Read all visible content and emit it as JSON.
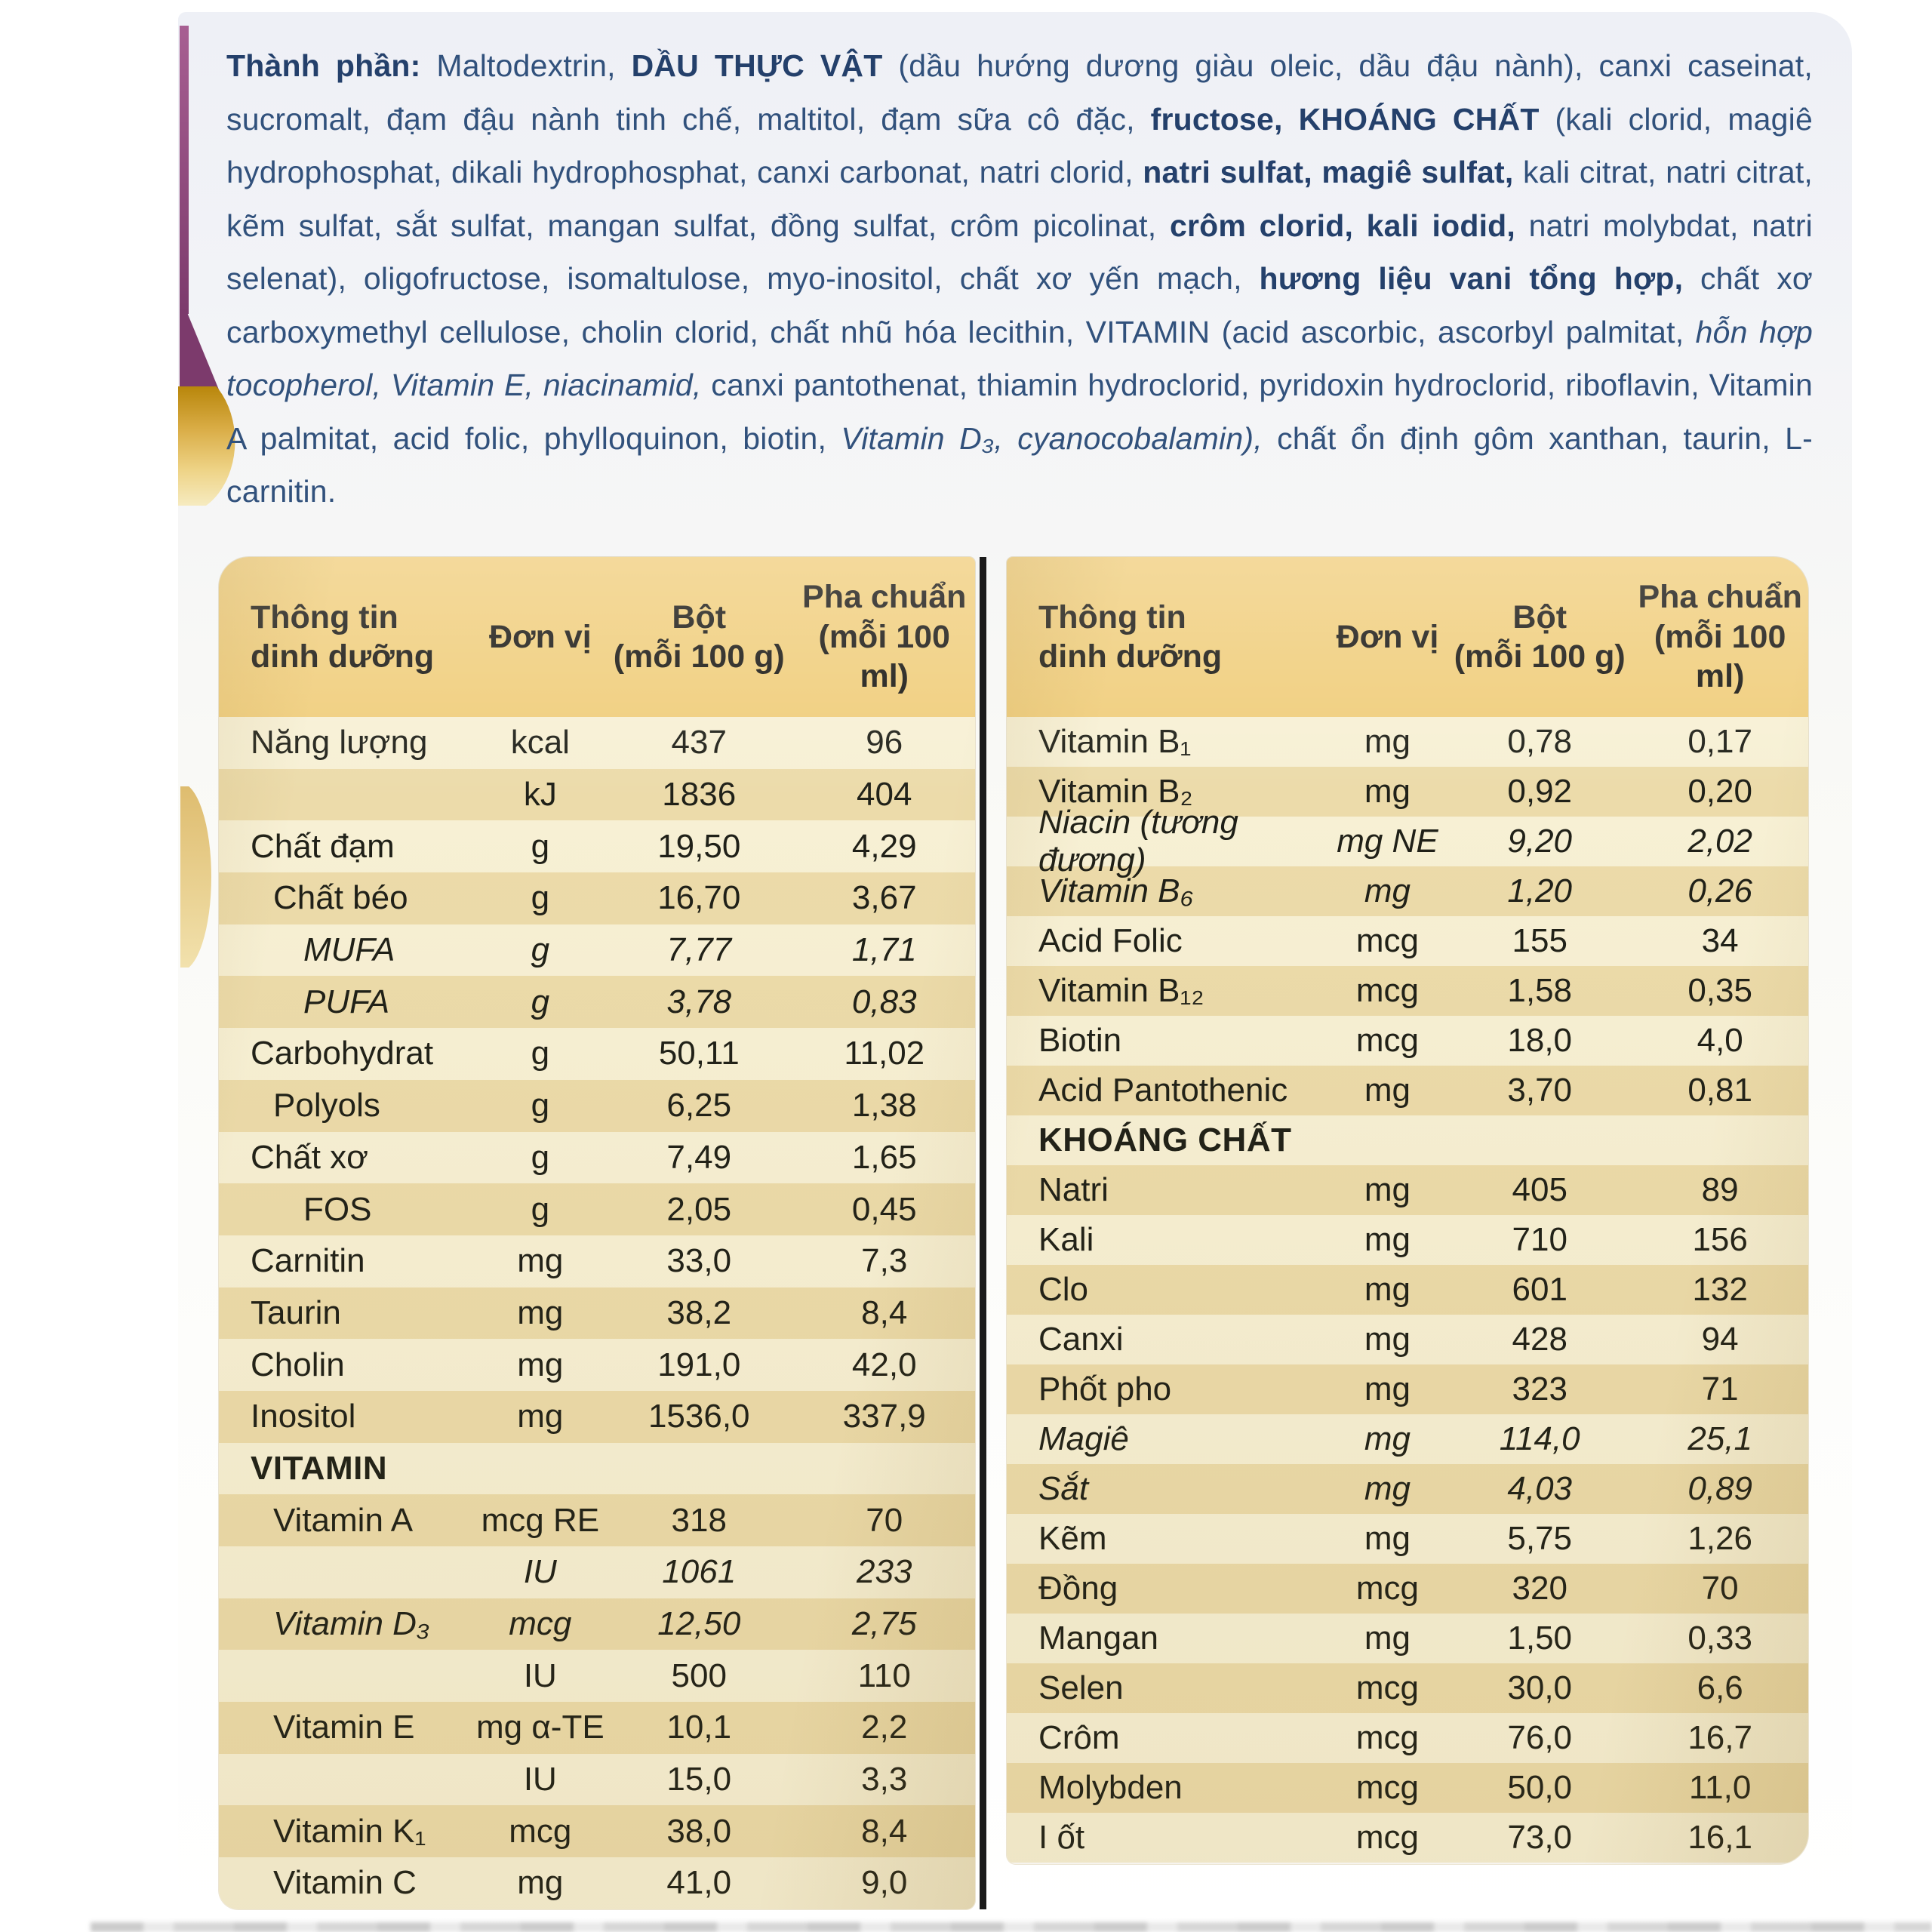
{
  "colors": {
    "header_bg": "#f0cd7a",
    "row_light": "#f7f0d4",
    "row_dark": "#ecdbaa",
    "table_ink": "#1f2018",
    "ingredients_ink": "#31517c",
    "divider": "#1b1b1b",
    "accent_purple": "#7c3a6c",
    "accent_gold": "#d9ac45"
  },
  "ingredients": {
    "segments": [
      {
        "text": "Thành phần: ",
        "bold": true
      },
      {
        "text": "Maltodextrin, "
      },
      {
        "text": "DẦU THỰC VẬT ",
        "bold": true
      },
      {
        "text": "(dầu hướng dương giàu oleic, dầu đậu nành), canxi caseinat, sucromalt, đạm đậu nành tinh chế, maltitol, đạm sữa cô đặc, "
      },
      {
        "text": "fructose, ",
        "bold": true
      },
      {
        "text": "KHOÁNG CHẤT ",
        "bold": true
      },
      {
        "text": "(kali clorid, magiê hydrophosphat, dikali hydrophosphat, canxi carbonat, natri clorid, "
      },
      {
        "text": "natri sulfat, magiê sulfat, ",
        "bold": true
      },
      {
        "text": "kali citrat, natri citrat, kẽm sulfat, sắt sulfat, mangan sulfat, đồng sulfat, crôm picolinat, "
      },
      {
        "text": "crôm clorid, kali iodid, ",
        "bold": true
      },
      {
        "text": "natri molybdat, natri selenat), oligofructose, isomaltulose, myo-inositol, chất xơ yến mạch, "
      },
      {
        "text": "hương liệu vani tổng hợp, ",
        "bold": true
      },
      {
        "text": "chất xơ carboxymethyl cellulose, cholin clorid, chất nhũ hóa lecithin, VITAMIN (acid ascorbic, ascorbyl palmitat, "
      },
      {
        "text": "hỗn hợp tocopherol, Vitamin E, niacinamid, ",
        "italic": true
      },
      {
        "text": "canxi pantothenat, thiamin hydroclorid, pyridoxin hydroclorid, riboflavin, Vitamin A palmitat, acid folic, phylloquinon, biotin, "
      },
      {
        "text": "Vitamin D₃, cyanocobalamin), ",
        "italic": true
      },
      {
        "text": "chất ổn định gôm xanthan, taurin, L-carnitin."
      }
    ]
  },
  "table_header": {
    "col1a": "Thông tin",
    "col1b": "dinh dưỡng",
    "col2": "Đơn vị",
    "col3a": "Bột",
    "col3b": "(mỗi 100 g)",
    "col4a": "Pha chuẩn",
    "col4b": "(mỗi 100 ml)"
  },
  "left_table": {
    "rows": [
      {
        "label": "Năng lượng",
        "unit": "kcal",
        "bot": "437",
        "pha": "96"
      },
      {
        "label": "",
        "unit": "kJ",
        "bot": "1836",
        "pha": "404"
      },
      {
        "label": "Chất đạm",
        "unit": "g",
        "bot": "19,50",
        "pha": "4,29"
      },
      {
        "label": "Chất béo",
        "unit": "g",
        "bot": "16,70",
        "pha": "3,67",
        "indent": 1
      },
      {
        "label": "MUFA",
        "unit": "g",
        "bot": "7,77",
        "pha": "1,71",
        "indent": 2,
        "italic": true
      },
      {
        "label": "PUFA",
        "unit": "g",
        "bot": "3,78",
        "pha": "0,83",
        "indent": 2,
        "italic": true
      },
      {
        "label": "Carbohydrat",
        "unit": "g",
        "bot": "50,11",
        "pha": "11,02"
      },
      {
        "label": "Polyols",
        "unit": "g",
        "bot": "6,25",
        "pha": "1,38",
        "indent": 1
      },
      {
        "label": "Chất xơ",
        "unit": "g",
        "bot": "7,49",
        "pha": "1,65"
      },
      {
        "label": "FOS",
        "unit": "g",
        "bot": "2,05",
        "pha": "0,45",
        "indent": 2
      },
      {
        "label": "Carnitin",
        "unit": "mg",
        "bot": "33,0",
        "pha": "7,3"
      },
      {
        "label": "Taurin",
        "unit": "mg",
        "bot": "38,2",
        "pha": "8,4"
      },
      {
        "label": "Cholin",
        "unit": "mg",
        "bot": "191,0",
        "pha": "42,0"
      },
      {
        "label": "Inositol",
        "unit": "mg",
        "bot": "1536,0",
        "pha": "337,9"
      },
      {
        "label": "VITAMIN",
        "section": true
      },
      {
        "label": "Vitamin A",
        "unit": "mcg RE",
        "bot": "318",
        "pha": "70",
        "indent": 1
      },
      {
        "label": "",
        "unit": "IU",
        "bot": "1061",
        "pha": "233",
        "italic": true
      },
      {
        "label": "Vitamin D₃",
        "unit": "mcg",
        "bot": "12,50",
        "pha": "2,75",
        "indent": 1,
        "italic": true
      },
      {
        "label": "",
        "unit": "IU",
        "bot": "500",
        "pha": "110"
      },
      {
        "label": "Vitamin E",
        "unit": "mg α-TE",
        "bot": "10,1",
        "pha": "2,2",
        "indent": 1
      },
      {
        "label": "",
        "unit": "IU",
        "bot": "15,0",
        "pha": "3,3"
      },
      {
        "label": "Vitamin K₁",
        "unit": "mcg",
        "bot": "38,0",
        "pha": "8,4",
        "indent": 1
      },
      {
        "label": "Vitamin C",
        "unit": "mg",
        "bot": "41,0",
        "pha": "9,0",
        "indent": 1
      }
    ]
  },
  "right_table": {
    "rows": [
      {
        "label": "Vitamin B₁",
        "unit": "mg",
        "bot": "0,78",
        "pha": "0,17"
      },
      {
        "label": "Vitamin B₂",
        "unit": "mg",
        "bot": "0,92",
        "pha": "0,20"
      },
      {
        "label": "Niacin (tương đương)",
        "unit": "mg NE",
        "bot": "9,20",
        "pha": "2,02",
        "italic": true
      },
      {
        "label": "Vitamin B₆",
        "unit": "mg",
        "bot": "1,20",
        "pha": "0,26",
        "italic": true
      },
      {
        "label": "Acid Folic",
        "unit": "mcg",
        "bot": "155",
        "pha": "34"
      },
      {
        "label": "Vitamin B₁₂",
        "unit": "mcg",
        "bot": "1,58",
        "pha": "0,35"
      },
      {
        "label": "Biotin",
        "unit": "mcg",
        "bot": "18,0",
        "pha": "4,0"
      },
      {
        "label": "Acid Pantothenic",
        "unit": "mg",
        "bot": "3,70",
        "pha": "0,81"
      },
      {
        "label": "KHOÁNG CHẤT",
        "section": true
      },
      {
        "label": "Natri",
        "unit": "mg",
        "bot": "405",
        "pha": "89"
      },
      {
        "label": "Kali",
        "unit": "mg",
        "bot": "710",
        "pha": "156"
      },
      {
        "label": "Clo",
        "unit": "mg",
        "bot": "601",
        "pha": "132"
      },
      {
        "label": "Canxi",
        "unit": "mg",
        "bot": "428",
        "pha": "94"
      },
      {
        "label": "Phốt pho",
        "unit": "mg",
        "bot": "323",
        "pha": "71"
      },
      {
        "label": "Magiê",
        "unit": "mg",
        "bot": "114,0",
        "pha": "25,1",
        "italic": true
      },
      {
        "label": "Sắt",
        "unit": "mg",
        "bot": "4,03",
        "pha": "0,89",
        "italic": true
      },
      {
        "label": "Kẽm",
        "unit": "mg",
        "bot": "5,75",
        "pha": "1,26"
      },
      {
        "label": "Đồng",
        "unit": "mcg",
        "bot": "320",
        "pha": "70"
      },
      {
        "label": "Mangan",
        "unit": "mg",
        "bot": "1,50",
        "pha": "0,33"
      },
      {
        "label": "Selen",
        "unit": "mcg",
        "bot": "30,0",
        "pha": "6,6"
      },
      {
        "label": "Crôm",
        "unit": "mcg",
        "bot": "76,0",
        "pha": "16,7"
      },
      {
        "label": "Molybden",
        "unit": "mcg",
        "bot": "50,0",
        "pha": "11,0"
      },
      {
        "label": "I ốt",
        "unit": "mcg",
        "bot": "73,0",
        "pha": "16,1"
      }
    ]
  }
}
